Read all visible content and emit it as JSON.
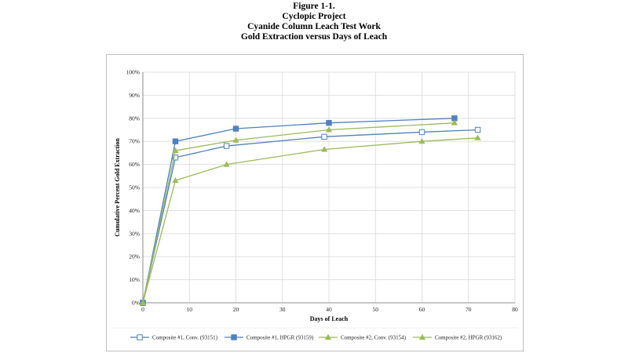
{
  "titles": {
    "figure": "Figure 1-1.",
    "project": "Cyclopic Project",
    "test": "Cyanide Column Leach Test Work",
    "subject": "Gold Extraction versus Days of Leach"
  },
  "chart_data": {
    "type": "line",
    "xlabel": "Days of Leach",
    "ylabel": "Cumulative Percent Gold Extraction",
    "xlim": [
      0,
      80
    ],
    "ylim": [
      0,
      100
    ],
    "xticks": [
      0,
      10,
      20,
      30,
      40,
      50,
      60,
      70,
      80
    ],
    "yticks": [
      0,
      10,
      20,
      30,
      40,
      50,
      60,
      70,
      80,
      90,
      100
    ],
    "yticks_labels": [
      "0%",
      "10%",
      "20%",
      "30%",
      "40%",
      "50%",
      "60%",
      "70%",
      "80%",
      "90%",
      "100%"
    ],
    "xticks_labels": [
      "0",
      "10",
      "20",
      "30",
      "40",
      "50",
      "60",
      "70",
      "80"
    ],
    "grid": true,
    "legend_position": "bottom",
    "series": [
      {
        "name": "Composite #1, Conv. (93151)",
        "color": "#4f81bd",
        "marker": "square-open",
        "x": [
          0,
          7,
          18,
          39,
          60,
          72
        ],
        "y": [
          0,
          63,
          68,
          72,
          74,
          75
        ]
      },
      {
        "name": "Composite #1, HPGR (93159)",
        "color": "#4f81bd",
        "marker": "square-filled",
        "x": [
          0,
          7,
          20,
          40,
          67
        ],
        "y": [
          0,
          70,
          75.5,
          78,
          80
        ]
      },
      {
        "name": "Composite #2, Conv. (93154)",
        "color": "#9bbb59",
        "marker": "triangle",
        "x": [
          0,
          7,
          18,
          39,
          60,
          72
        ],
        "y": [
          0,
          53,
          60,
          66.5,
          70,
          71.5
        ]
      },
      {
        "name": "Composite #2, HPGR (93162)",
        "color": "#9bbb59",
        "marker": "triangle",
        "x": [
          0,
          7,
          20,
          40,
          67
        ],
        "y": [
          0,
          66,
          70.5,
          75,
          78
        ]
      }
    ]
  }
}
